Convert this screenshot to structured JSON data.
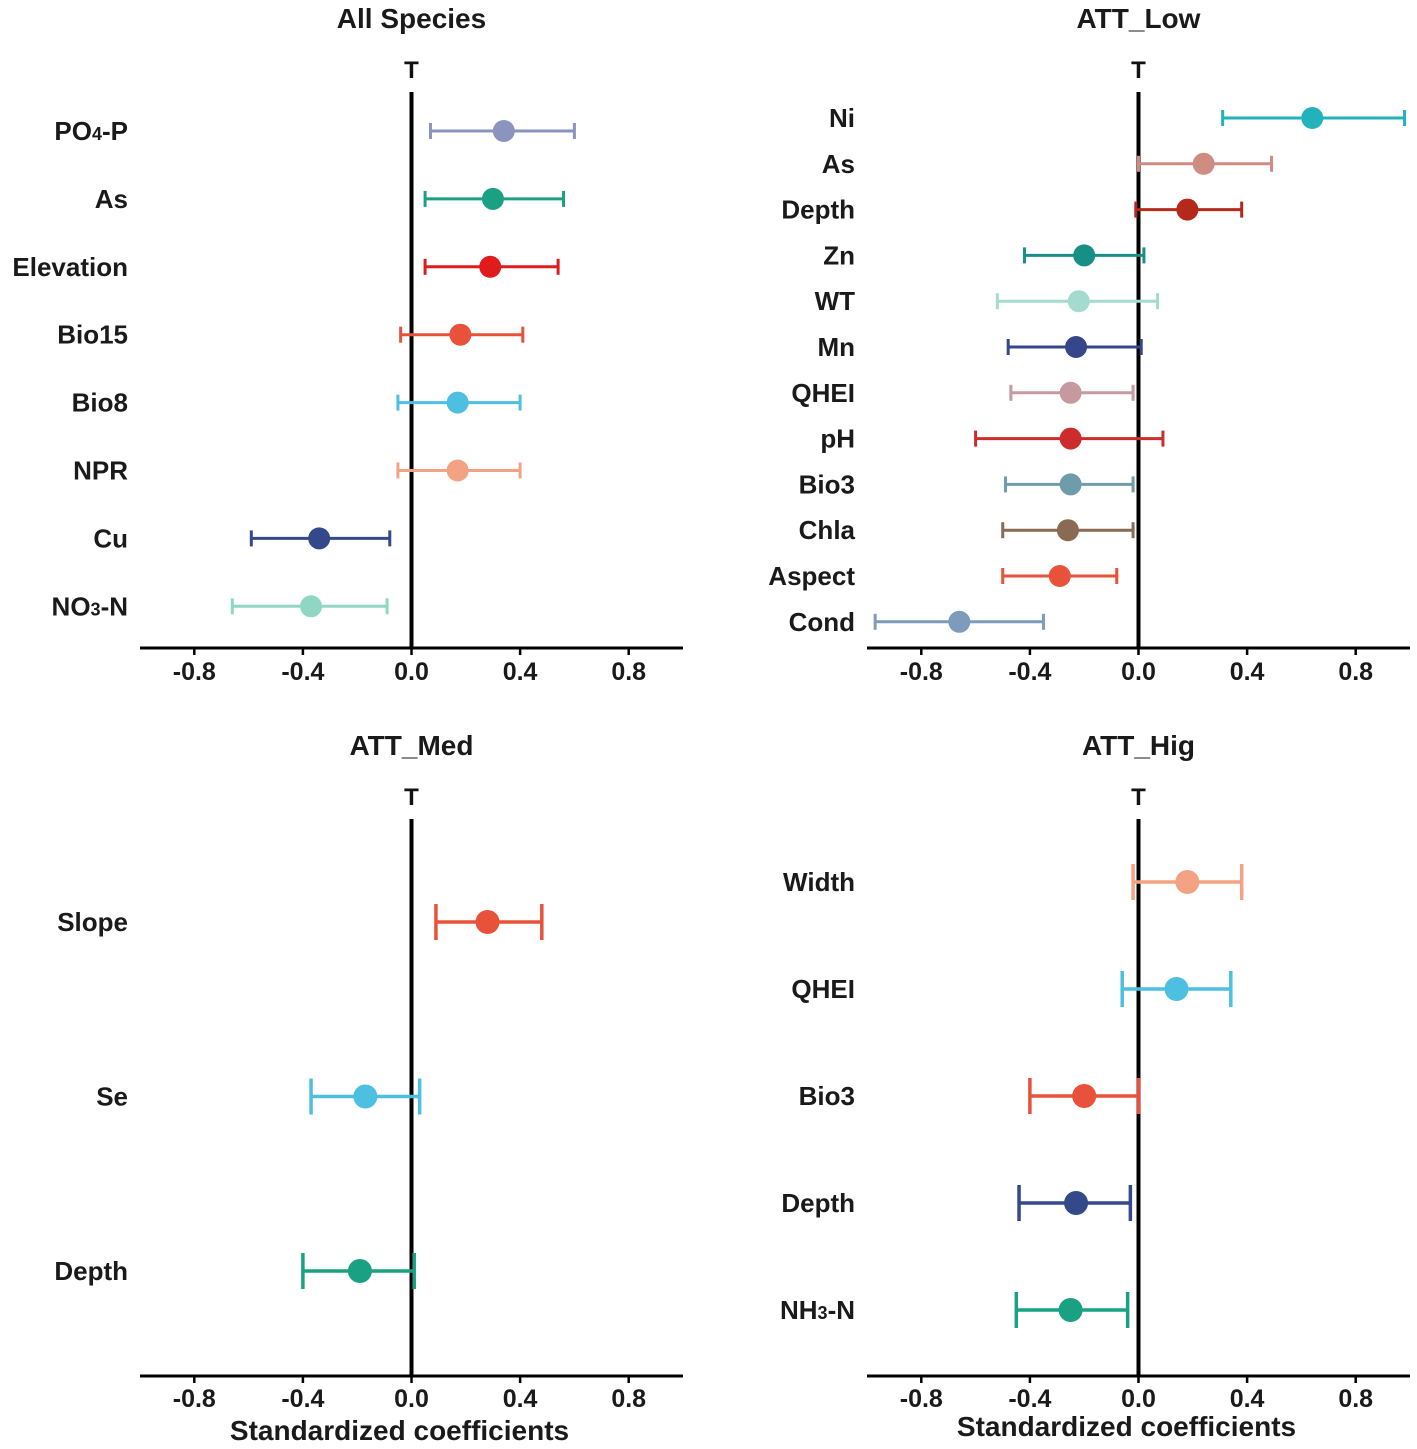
{
  "chart_data": [
    {
      "type": "forest",
      "title": "All Species",
      "reference_label": "T",
      "xlabel": "",
      "xlim": [
        -1.0,
        1.0
      ],
      "xticks": [
        -0.8,
        -0.4,
        0.0,
        0.4,
        0.8
      ],
      "xtick_labels": [
        "-0.8",
        "-0.4",
        "0.0",
        "0.4",
        "0.8"
      ],
      "series": [
        {
          "name": "PO4-P",
          "label": "PO",
          "subscript": "4",
          "suffix": "-P",
          "estimate": 0.34,
          "lower": 0.07,
          "upper": 0.6,
          "color": "#8b93bf"
        },
        {
          "name": "As",
          "label": "As",
          "estimate": 0.3,
          "lower": 0.05,
          "upper": 0.56,
          "color": "#1aa082"
        },
        {
          "name": "Elevation",
          "label": "Elevation",
          "estimate": 0.29,
          "lower": 0.05,
          "upper": 0.54,
          "color": "#e01b1b"
        },
        {
          "name": "Bio15",
          "label": "Bio15",
          "estimate": 0.18,
          "lower": -0.04,
          "upper": 0.41,
          "color": "#e8523a"
        },
        {
          "name": "Bio8",
          "label": "Bio8",
          "estimate": 0.17,
          "lower": -0.05,
          "upper": 0.4,
          "color": "#4dbfe0"
        },
        {
          "name": "NPR",
          "label": "NPR",
          "estimate": 0.17,
          "lower": -0.05,
          "upper": 0.4,
          "color": "#f4a284"
        },
        {
          "name": "Cu",
          "label": "Cu",
          "estimate": -0.34,
          "lower": -0.59,
          "upper": -0.08,
          "color": "#34498a"
        },
        {
          "name": "NO3-N",
          "label": "NO",
          "subscript": "3",
          "suffix": "-N",
          "estimate": -0.37,
          "lower": -0.66,
          "upper": -0.09,
          "color": "#8fd6c3"
        }
      ]
    },
    {
      "type": "forest",
      "title": "ATT_Low",
      "reference_label": "T",
      "xlabel": "",
      "xlim": [
        -1.0,
        1.0
      ],
      "xticks": [
        -0.8,
        -0.4,
        0.0,
        0.4,
        0.8
      ],
      "xtick_labels": [
        "-0.8",
        "-0.4",
        "0.0",
        "0.4",
        "0.8"
      ],
      "series": [
        {
          "name": "Ni",
          "label": "Ni",
          "estimate": 0.64,
          "lower": 0.31,
          "upper": 0.98,
          "color": "#22b2bc"
        },
        {
          "name": "As",
          "label": "As",
          "estimate": 0.24,
          "lower": 0.0,
          "upper": 0.49,
          "color": "#cf8c80"
        },
        {
          "name": "Depth",
          "label": "Depth",
          "estimate": 0.18,
          "lower": -0.01,
          "upper": 0.38,
          "color": "#b5291c"
        },
        {
          "name": "Zn",
          "label": "Zn",
          "estimate": -0.2,
          "lower": -0.42,
          "upper": 0.02,
          "color": "#178f86"
        },
        {
          "name": "WT",
          "label": "WT",
          "estimate": -0.22,
          "lower": -0.52,
          "upper": 0.07,
          "color": "#a3dccf"
        },
        {
          "name": "Mn",
          "label": "Mn",
          "estimate": -0.23,
          "lower": -0.48,
          "upper": 0.01,
          "color": "#35478a"
        },
        {
          "name": "QHEI",
          "label": "QHEI",
          "estimate": -0.25,
          "lower": -0.47,
          "upper": -0.02,
          "color": "#c698a0"
        },
        {
          "name": "pH",
          "label": "pH",
          "estimate": -0.25,
          "lower": -0.6,
          "upper": 0.09,
          "color": "#cc2c2c"
        },
        {
          "name": "Bio3",
          "label": "Bio3",
          "estimate": -0.25,
          "lower": -0.49,
          "upper": -0.02,
          "color": "#6f9caa"
        },
        {
          "name": "Chla",
          "label": "Chla",
          "estimate": -0.26,
          "lower": -0.5,
          "upper": -0.02,
          "color": "#8a6a52"
        },
        {
          "name": "Aspect",
          "label": "Aspect",
          "estimate": -0.29,
          "lower": -0.5,
          "upper": -0.08,
          "color": "#e8523a"
        },
        {
          "name": "Cond",
          "label": "Cond",
          "estimate": -0.66,
          "lower": -0.97,
          "upper": -0.35,
          "color": "#7e9bbb"
        }
      ]
    },
    {
      "type": "forest",
      "title": "ATT_Med",
      "reference_label": "T",
      "xlabel": "Standardized coefficients",
      "xlim": [
        -1.0,
        1.0
      ],
      "xticks": [
        -0.8,
        -0.4,
        0.0,
        0.4,
        0.8
      ],
      "xtick_labels": [
        "-0.8",
        "-0.4",
        "0.0",
        "0.4",
        "0.8"
      ],
      "series": [
        {
          "name": "Slope",
          "label": "Slope",
          "estimate": 0.28,
          "lower": 0.09,
          "upper": 0.48,
          "color": "#e8523a"
        },
        {
          "name": "Se",
          "label": "Se",
          "estimate": -0.17,
          "lower": -0.37,
          "upper": 0.03,
          "color": "#4dbfe0"
        },
        {
          "name": "Depth",
          "label": "Depth",
          "estimate": -0.19,
          "lower": -0.4,
          "upper": 0.01,
          "color": "#1aa082"
        }
      ]
    },
    {
      "type": "forest",
      "title": "ATT_Hig",
      "reference_label": "T",
      "xlabel": "Standardized coefficients",
      "xlim": [
        -1.0,
        1.0
      ],
      "xticks": [
        -0.8,
        -0.4,
        0.0,
        0.4,
        0.8
      ],
      "xtick_labels": [
        "-0.8",
        "-0.4",
        "0.0",
        "0.4",
        "0.8"
      ],
      "series": [
        {
          "name": "Width",
          "label": "Width",
          "estimate": 0.18,
          "lower": -0.02,
          "upper": 0.38,
          "color": "#f4a284"
        },
        {
          "name": "QHEI",
          "label": "QHEI",
          "estimate": 0.14,
          "lower": -0.06,
          "upper": 0.34,
          "color": "#4dbfe0"
        },
        {
          "name": "Bio3",
          "label": "Bio3",
          "estimate": -0.2,
          "lower": -0.4,
          "upper": 0.0,
          "color": "#e8523a"
        },
        {
          "name": "Depth",
          "label": "Depth",
          "estimate": -0.23,
          "lower": -0.44,
          "upper": -0.03,
          "color": "#34498a"
        },
        {
          "name": "NH3-N",
          "label": "NH",
          "subscript": "3",
          "suffix": "-N",
          "estimate": -0.25,
          "lower": -0.45,
          "upper": -0.04,
          "color": "#1aa082"
        }
      ]
    }
  ]
}
